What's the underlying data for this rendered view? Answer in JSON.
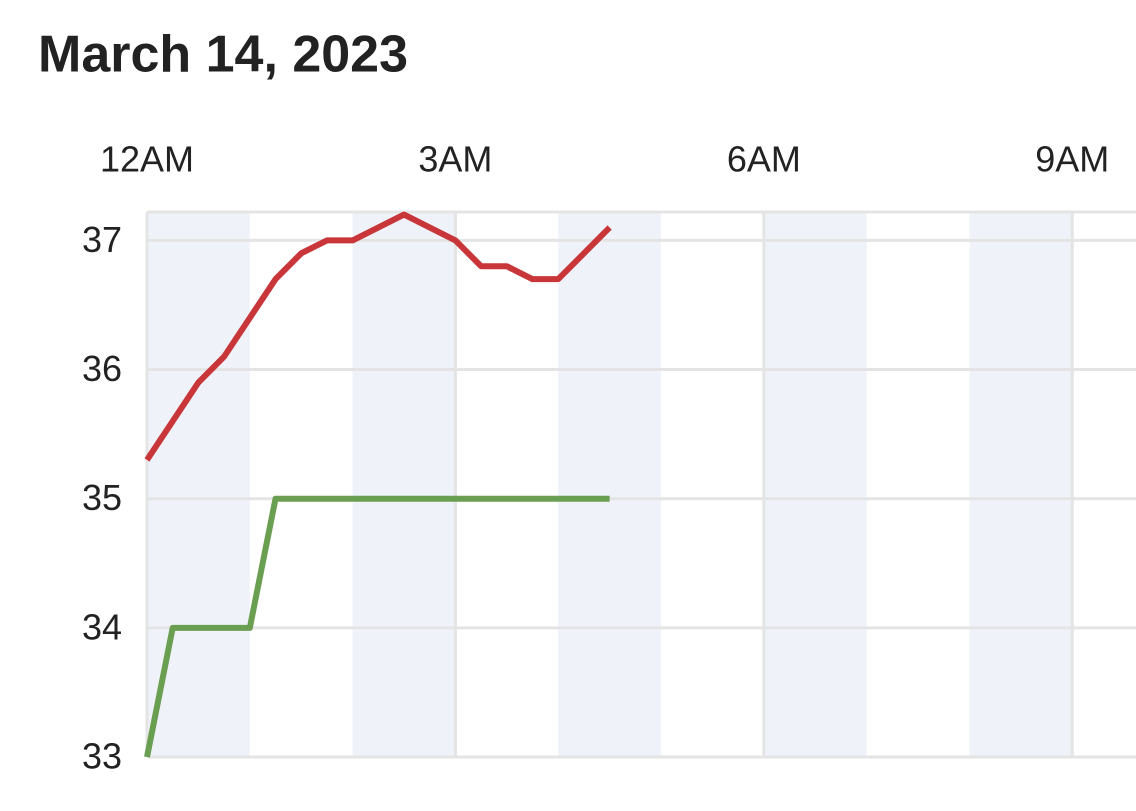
{
  "chart_data": {
    "type": "line",
    "title": "March 14, 2023",
    "xlim": [
      0,
      9.62
    ],
    "xticks": [
      {
        "value": 0,
        "label": "12AM"
      },
      {
        "value": 3,
        "label": "3AM"
      },
      {
        "value": 6,
        "label": "6AM"
      },
      {
        "value": 9,
        "label": "9AM"
      }
    ],
    "ylim": [
      33,
      37.22
    ],
    "yticks": [
      33,
      34,
      35,
      36,
      37
    ],
    "grid": true,
    "series": [
      {
        "color": "#c8363a",
        "x": [
          0,
          0.5,
          0.75,
          1.25,
          1.5,
          1.75,
          2,
          2.5,
          3,
          3.25,
          3.5,
          3.75,
          4,
          4.5
        ],
        "values": [
          35.3,
          35.9,
          36.1,
          36.7,
          36.9,
          37.0,
          37.0,
          37.2,
          37.0,
          36.8,
          36.8,
          36.7,
          36.7,
          37.1
        ]
      },
      {
        "color": "#6a9e50",
        "x": [
          0,
          0.25,
          1,
          1.25,
          4.5
        ],
        "values": [
          33,
          34,
          34,
          35,
          35
        ]
      }
    ]
  }
}
